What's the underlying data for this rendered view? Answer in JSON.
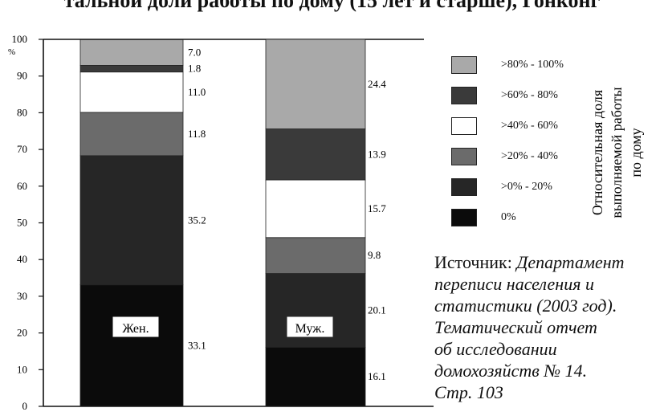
{
  "title": "тальной доли работы по дому (15 лет и старше), Гонконг",
  "source": {
    "prefix": "Источник: ",
    "lines": [
      "Департамент",
      "переписи населения и",
      "статистики (2003 год).",
      "Тематический отчет",
      "об исследовании",
      "домохозяйств № 14.",
      "Стр. 103"
    ]
  },
  "legend_side_label": [
    "Относительная доля",
    "выполняемой работы",
    "по дому"
  ],
  "colors": {
    "0%": "#0b0b0b",
    ">0% - 20%": "#262626",
    ">20% - 40%": "#6b6b6b",
    ">40% - 60%": "#ffffff",
    ">60% - 80%": "#3a3a3a",
    ">80% - 100%": "#a9a9a9"
  },
  "chart_data": {
    "type": "bar",
    "stacked": true,
    "categories": [
      "Жен.",
      "Муж."
    ],
    "ylabel": "%",
    "ylim": [
      0,
      100
    ],
    "yticks": [
      0,
      10,
      20,
      30,
      40,
      50,
      60,
      70,
      80,
      90,
      100
    ],
    "series": [
      {
        "name": "0%",
        "values": [
          33.1,
          16.1
        ]
      },
      {
        "name": ">0% - 20%",
        "values": [
          35.2,
          20.1
        ]
      },
      {
        "name": ">20% - 40%",
        "values": [
          11.8,
          9.8
        ]
      },
      {
        "name": ">40% - 60%",
        "values": [
          11.0,
          15.7
        ]
      },
      {
        "name": ">60% - 80%",
        "values": [
          1.8,
          13.9
        ]
      },
      {
        "name": ">80% - 100%",
        "values": [
          7.0,
          24.4
        ]
      }
    ],
    "data_labels": [
      [
        "33.1",
        "35.2",
        "11.8",
        "11.0",
        "1.8",
        "7.0"
      ],
      [
        "16.1",
        "20.1",
        "9.8",
        "15.7",
        "13.9",
        "24.4"
      ]
    ],
    "legend": [
      ">80% - 100%",
      ">60% - 80%",
      ">40% - 60%",
      ">20% - 40%",
      ">0% - 20%",
      "0%"
    ],
    "legend_position": "right"
  }
}
